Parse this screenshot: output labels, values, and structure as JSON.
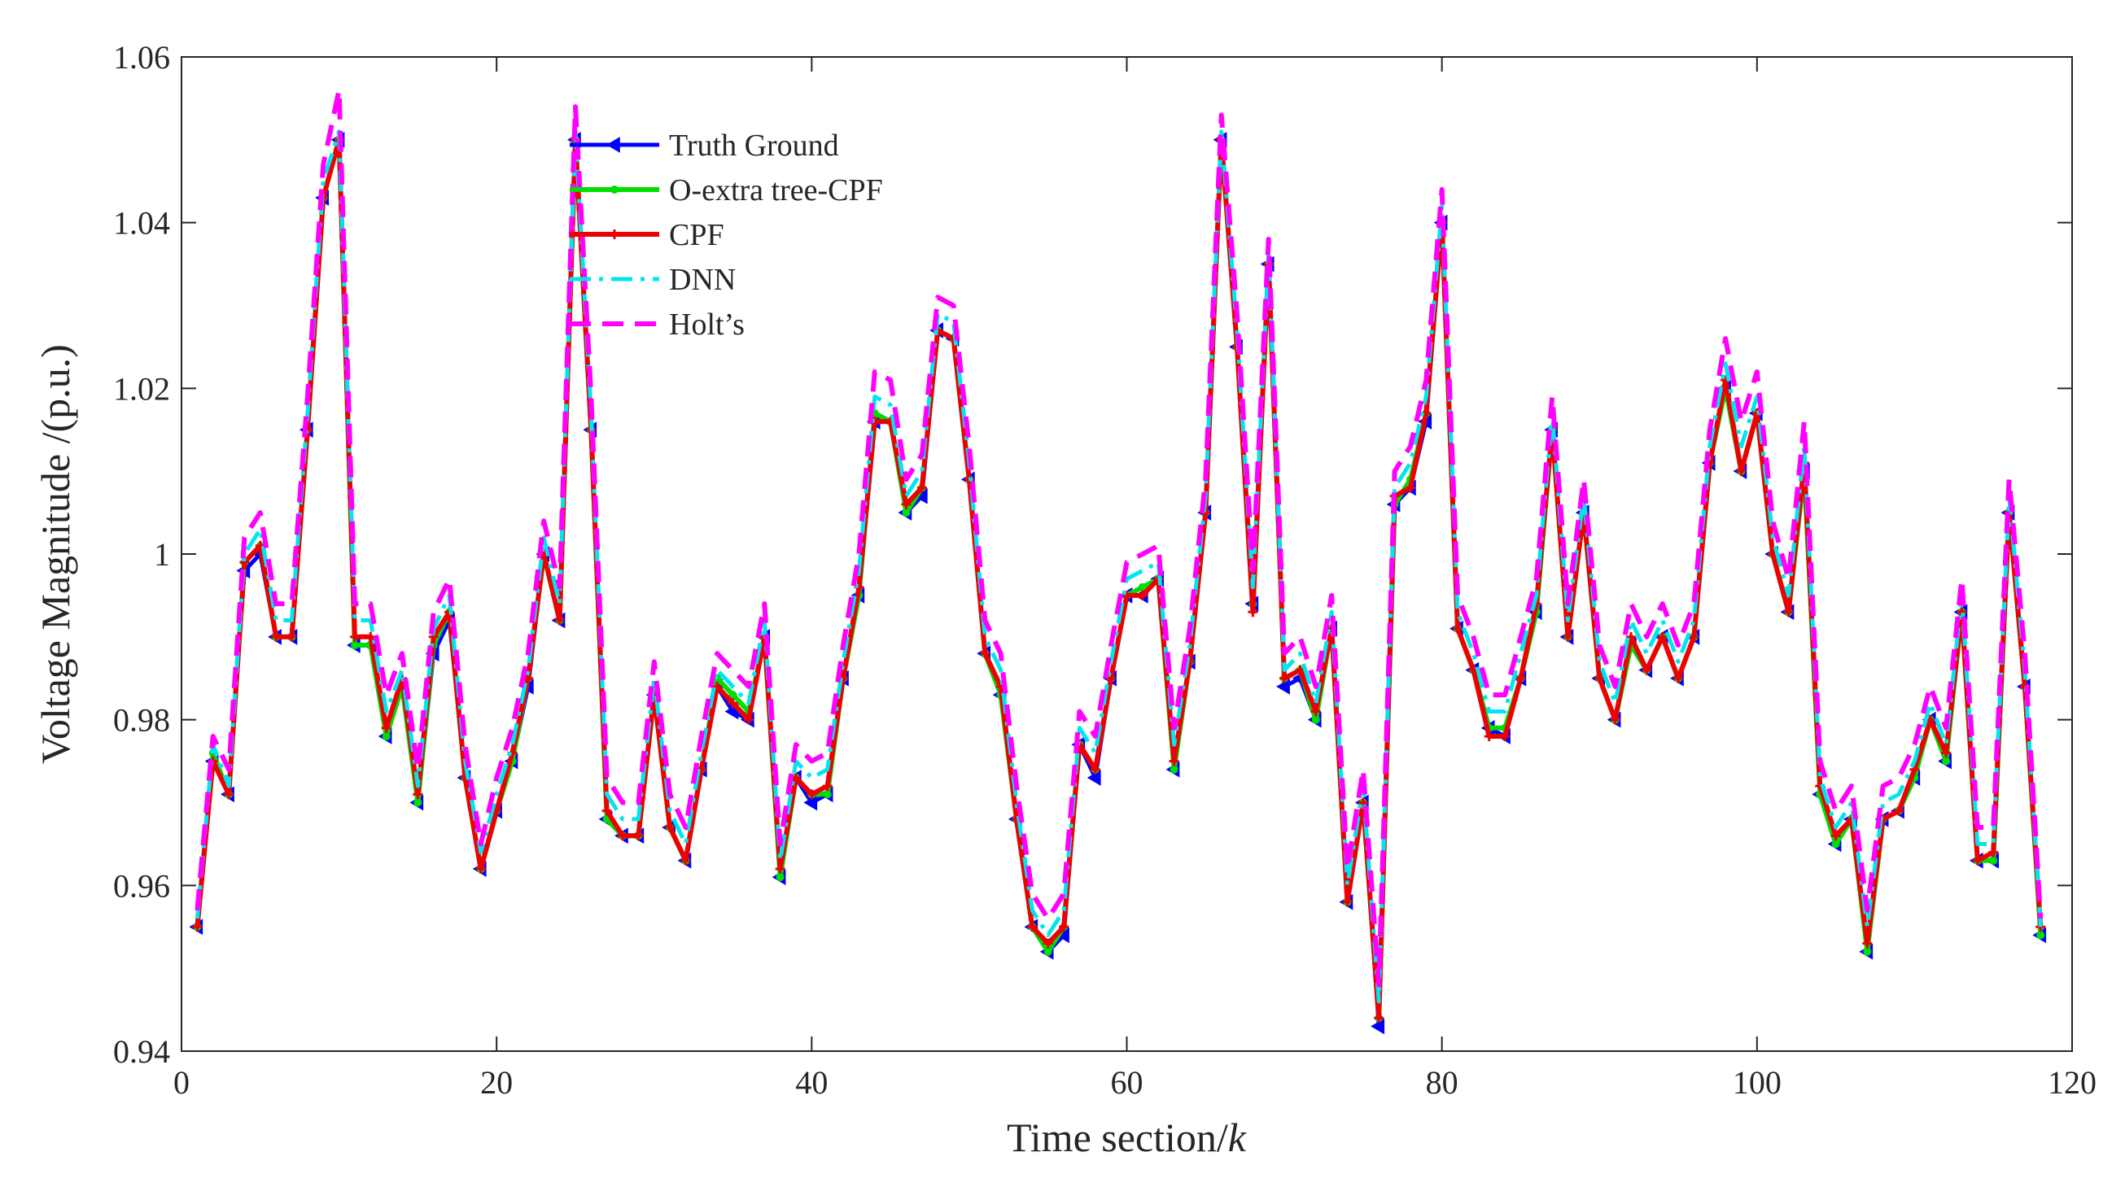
{
  "chart_data": {
    "type": "line",
    "title": "",
    "xlabel": "Time section/",
    "xlabel_italic": "k",
    "ylabel": "Voltage Magnitude /(p.u.)",
    "xlim": [
      0,
      120
    ],
    "ylim": [
      0.94,
      1.06
    ],
    "xticks": [
      0,
      20,
      40,
      60,
      80,
      100,
      120
    ],
    "yticks": [
      0.94,
      0.96,
      0.98,
      1,
      1.02,
      1.04,
      1.06
    ],
    "xtick_labels": [
      "0",
      "20",
      "40",
      "60",
      "80",
      "100",
      "120"
    ],
    "ytick_labels": [
      "0.94",
      "0.96",
      "0.98",
      "1",
      "1.02",
      "1.04",
      "1.06"
    ],
    "grid": false,
    "legend_position": "top-left",
    "x": [
      1,
      2,
      3,
      4,
      5,
      6,
      7,
      8,
      9,
      10,
      11,
      12,
      13,
      14,
      15,
      16,
      17,
      18,
      19,
      20,
      21,
      22,
      23,
      24,
      25,
      26,
      27,
      28,
      29,
      30,
      31,
      32,
      33,
      34,
      35,
      36,
      37,
      38,
      39,
      40,
      41,
      42,
      43,
      44,
      45,
      46,
      47,
      48,
      49,
      50,
      51,
      52,
      53,
      54,
      55,
      56,
      57,
      58,
      59,
      60,
      61,
      62,
      63,
      64,
      65,
      66,
      67,
      68,
      69,
      70,
      71,
      72,
      73,
      74,
      75,
      76,
      77,
      78,
      79,
      80,
      81,
      82,
      83,
      84,
      85,
      86,
      87,
      88,
      89,
      90,
      91,
      92,
      93,
      94,
      95,
      96,
      97,
      98,
      99,
      100,
      101,
      102,
      103,
      104,
      105,
      106,
      107,
      108,
      109,
      110,
      111,
      112,
      113,
      114,
      115,
      116,
      117,
      118
    ],
    "series": [
      {
        "name": "Truth Ground",
        "color": "#0000ff",
        "style": "solid",
        "marker": "triangle-left",
        "values": [
          0.955,
          0.975,
          0.971,
          0.998,
          1.0,
          0.99,
          0.99,
          1.015,
          1.043,
          1.05,
          0.989,
          0.989,
          0.978,
          0.984,
          0.97,
          0.988,
          0.992,
          0.973,
          0.962,
          0.969,
          0.975,
          0.984,
          1.0,
          0.992,
          1.05,
          1.015,
          0.968,
          0.966,
          0.966,
          0.983,
          0.967,
          0.963,
          0.974,
          0.984,
          0.981,
          0.98,
          0.99,
          0.961,
          0.973,
          0.97,
          0.971,
          0.985,
          0.995,
          1.016,
          1.016,
          1.005,
          1.007,
          1.027,
          1.026,
          1.009,
          0.988,
          0.983,
          0.968,
          0.955,
          0.952,
          0.954,
          0.977,
          0.973,
          0.985,
          0.995,
          0.995,
          0.997,
          0.974,
          0.987,
          1.005,
          1.05,
          1.025,
          0.994,
          1.035,
          0.984,
          0.985,
          0.98,
          0.991,
          0.958,
          0.97,
          0.943,
          1.006,
          1.008,
          1.016,
          1.04,
          0.991,
          0.986,
          0.979,
          0.978,
          0.985,
          0.993,
          1.015,
          0.99,
          1.005,
          0.985,
          0.98,
          0.989,
          0.986,
          0.99,
          0.985,
          0.99,
          1.011,
          1.02,
          1.01,
          1.017,
          1.0,
          0.993,
          1.01,
          0.971,
          0.965,
          0.968,
          0.952,
          0.968,
          0.969,
          0.973,
          0.98,
          0.975,
          0.993,
          0.963,
          0.963,
          1.005,
          0.984,
          0.954
        ]
      },
      {
        "name": "O-extra tree-CPF",
        "color": "#00dd00",
        "style": "solid",
        "marker": "dot",
        "values": [
          0.955,
          0.976,
          0.971,
          0.999,
          1.001,
          0.99,
          0.99,
          1.015,
          1.043,
          1.05,
          0.989,
          0.989,
          0.978,
          0.984,
          0.97,
          0.989,
          0.993,
          0.973,
          0.962,
          0.969,
          0.975,
          0.985,
          1.0,
          0.992,
          1.05,
          1.015,
          0.968,
          0.966,
          0.966,
          0.983,
          0.967,
          0.963,
          0.974,
          0.985,
          0.983,
          0.981,
          0.99,
          0.961,
          0.973,
          0.971,
          0.971,
          0.985,
          0.995,
          1.017,
          1.016,
          1.005,
          1.008,
          1.027,
          1.026,
          1.009,
          0.988,
          0.983,
          0.968,
          0.955,
          0.952,
          0.955,
          0.977,
          0.974,
          0.985,
          0.995,
          0.996,
          0.997,
          0.974,
          0.987,
          1.005,
          1.05,
          1.025,
          0.994,
          1.035,
          0.985,
          0.986,
          0.98,
          0.991,
          0.958,
          0.97,
          0.944,
          1.006,
          1.009,
          1.017,
          1.04,
          0.991,
          0.986,
          0.979,
          0.979,
          0.985,
          0.993,
          1.015,
          0.99,
          1.005,
          0.985,
          0.98,
          0.989,
          0.986,
          0.99,
          0.985,
          0.99,
          1.011,
          1.02,
          1.01,
          1.017,
          1.0,
          0.993,
          1.01,
          0.971,
          0.965,
          0.968,
          0.952,
          0.968,
          0.969,
          0.973,
          0.98,
          0.975,
          0.993,
          0.963,
          0.963,
          1.005,
          0.984,
          0.954
        ]
      },
      {
        "name": "CPF",
        "color": "#ee0000",
        "style": "solid",
        "marker": "plus",
        "values": [
          0.955,
          0.975,
          0.971,
          0.999,
          1.001,
          0.99,
          0.99,
          1.015,
          1.043,
          1.05,
          0.99,
          0.99,
          0.979,
          0.985,
          0.971,
          0.99,
          0.993,
          0.973,
          0.962,
          0.969,
          0.976,
          0.985,
          1.0,
          0.992,
          1.05,
          1.015,
          0.969,
          0.966,
          0.966,
          0.983,
          0.967,
          0.963,
          0.974,
          0.984,
          0.982,
          0.98,
          0.99,
          0.962,
          0.973,
          0.971,
          0.972,
          0.985,
          0.996,
          1.016,
          1.016,
          1.006,
          1.008,
          1.027,
          1.026,
          1.009,
          0.988,
          0.984,
          0.968,
          0.955,
          0.953,
          0.955,
          0.977,
          0.974,
          0.985,
          0.995,
          0.995,
          0.997,
          0.975,
          0.987,
          1.005,
          1.05,
          1.025,
          0.993,
          1.035,
          0.985,
          0.986,
          0.981,
          0.991,
          0.958,
          0.97,
          0.944,
          1.007,
          1.008,
          1.017,
          1.04,
          0.991,
          0.986,
          0.978,
          0.978,
          0.985,
          0.994,
          1.015,
          0.99,
          1.005,
          0.985,
          0.98,
          0.99,
          0.986,
          0.99,
          0.985,
          0.99,
          1.011,
          1.021,
          1.01,
          1.017,
          1.0,
          0.993,
          1.011,
          0.972,
          0.966,
          0.968,
          0.953,
          0.968,
          0.969,
          0.974,
          0.98,
          0.976,
          0.993,
          0.963,
          0.964,
          1.005,
          0.984,
          0.955
        ]
      },
      {
        "name": "DNN",
        "color": "#00e5ee",
        "style": "dash-dot",
        "marker": "none",
        "values": [
          0.956,
          0.977,
          0.972,
          1.0,
          1.003,
          0.992,
          0.992,
          1.017,
          1.045,
          1.051,
          0.992,
          0.992,
          0.981,
          0.986,
          0.972,
          0.991,
          0.995,
          0.975,
          0.964,
          0.971,
          0.977,
          0.986,
          1.002,
          0.994,
          1.051,
          1.017,
          0.971,
          0.968,
          0.968,
          0.985,
          0.969,
          0.965,
          0.976,
          0.986,
          0.984,
          0.982,
          0.992,
          0.963,
          0.975,
          0.973,
          0.974,
          0.987,
          0.998,
          1.019,
          1.018,
          1.007,
          1.01,
          1.029,
          1.028,
          1.011,
          0.99,
          0.986,
          0.97,
          0.957,
          0.954,
          0.957,
          0.979,
          0.976,
          0.987,
          0.997,
          0.998,
          0.999,
          0.977,
          0.989,
          1.007,
          1.051,
          1.027,
          0.996,
          1.036,
          0.986,
          0.988,
          0.982,
          0.993,
          0.96,
          0.972,
          0.946,
          1.008,
          1.011,
          1.019,
          1.042,
          0.993,
          0.988,
          0.981,
          0.981,
          0.988,
          0.995,
          1.017,
          0.992,
          1.007,
          0.987,
          0.982,
          0.992,
          0.988,
          0.992,
          0.987,
          0.992,
          1.013,
          1.023,
          1.013,
          1.019,
          1.002,
          0.995,
          1.013,
          0.973,
          0.967,
          0.97,
          0.955,
          0.97,
          0.971,
          0.975,
          0.982,
          0.977,
          0.995,
          0.965,
          0.965,
          1.007,
          0.986,
          0.955
        ]
      },
      {
        "name": "Holt’s",
        "color": "#ff00ff",
        "style": "dashed",
        "marker": "none",
        "values": [
          0.957,
          0.978,
          0.974,
          1.002,
          1.005,
          0.994,
          0.994,
          1.019,
          1.047,
          1.056,
          0.994,
          0.994,
          0.983,
          0.988,
          0.974,
          0.993,
          0.997,
          0.977,
          0.965,
          0.973,
          0.979,
          0.988,
          1.004,
          0.996,
          1.054,
          1.019,
          0.973,
          0.97,
          0.97,
          0.987,
          0.971,
          0.967,
          0.978,
          0.988,
          0.986,
          0.984,
          0.994,
          0.965,
          0.977,
          0.975,
          0.976,
          0.989,
          1.0,
          1.022,
          1.021,
          1.009,
          1.012,
          1.031,
          1.03,
          1.013,
          0.992,
          0.988,
          0.972,
          0.959,
          0.956,
          0.959,
          0.981,
          0.978,
          0.989,
          0.999,
          1.0,
          1.001,
          0.979,
          0.991,
          1.009,
          1.053,
          1.029,
          0.998,
          1.038,
          0.988,
          0.99,
          0.984,
          0.995,
          0.962,
          0.974,
          0.948,
          1.01,
          1.013,
          1.021,
          1.044,
          0.995,
          0.99,
          0.983,
          0.983,
          0.99,
          0.997,
          1.019,
          0.994,
          1.009,
          0.989,
          0.984,
          0.994,
          0.99,
          0.994,
          0.989,
          0.994,
          1.015,
          1.026,
          1.016,
          1.022,
          1.004,
          0.997,
          1.016,
          0.975,
          0.969,
          0.972,
          0.957,
          0.972,
          0.973,
          0.977,
          0.984,
          0.979,
          0.997,
          0.967,
          0.967,
          1.009,
          0.988,
          0.956
        ]
      }
    ]
  }
}
